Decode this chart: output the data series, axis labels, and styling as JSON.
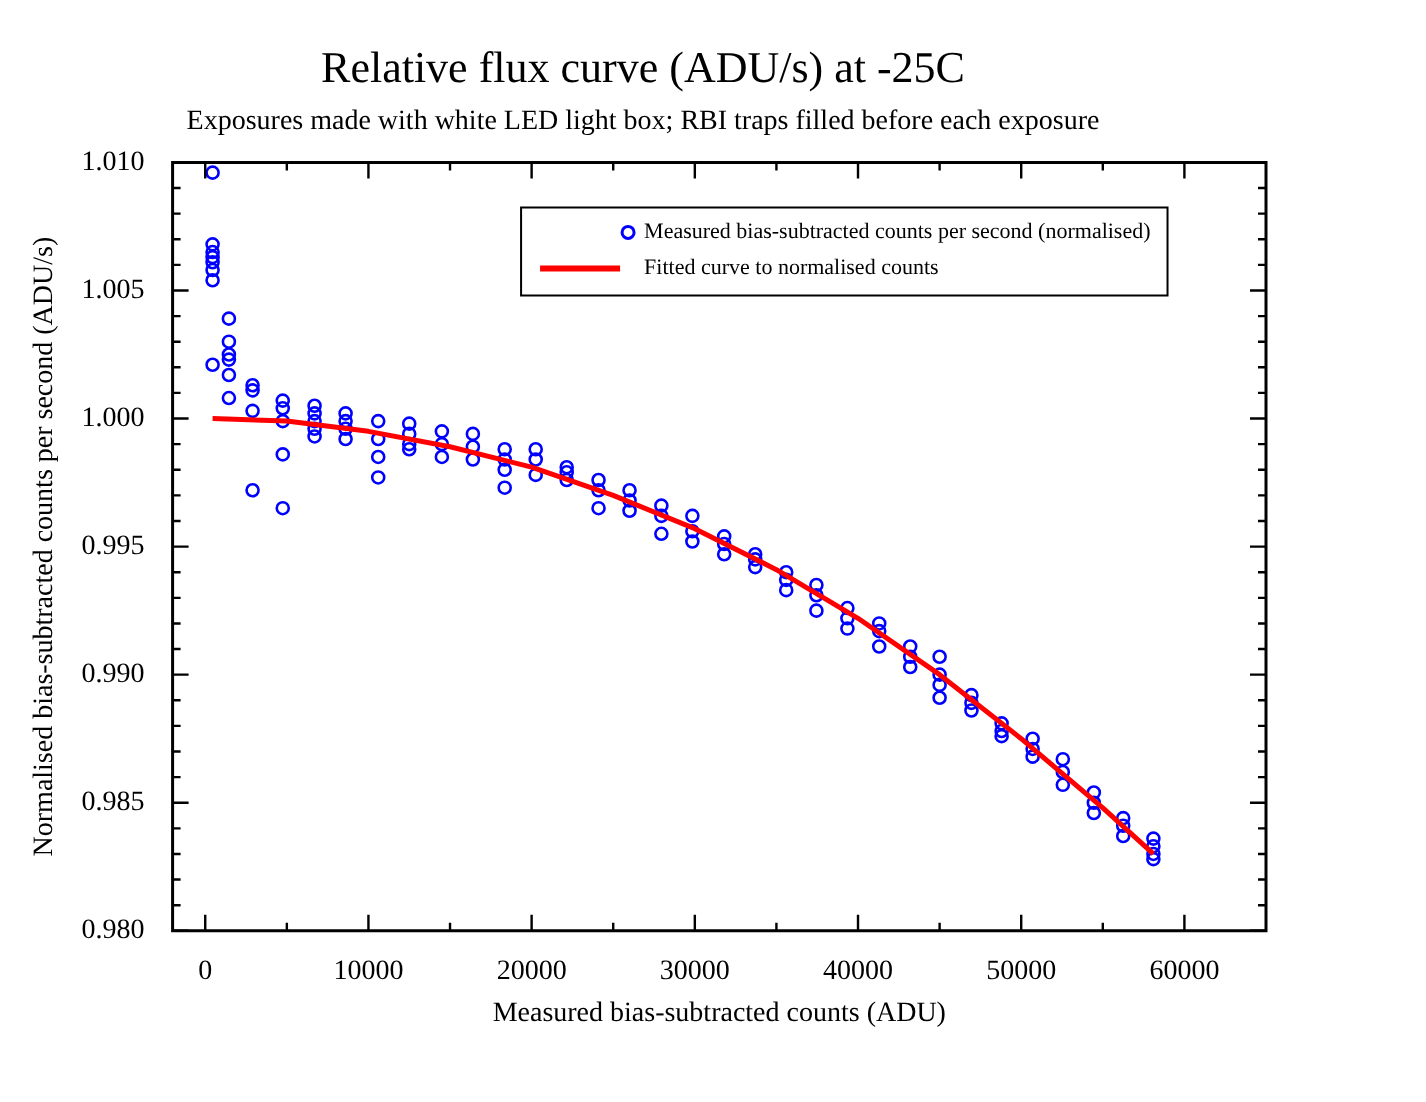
{
  "chart_data": {
    "type": "scatter",
    "title": "Relative flux curve (ADU/s) at -25C",
    "subtitle": "Exposures made with white LED light box; RBI traps filled before each exposure",
    "xlabel": "Measured bias-subtracted counts (ADU)",
    "ylabel": "Normalised bias-subtracted counts per second (ADU/s)",
    "xlim": [
      -2000,
      65000
    ],
    "xticks": [
      0,
      {
        "value": 5000,
        "label": null
      },
      10000,
      {
        "value": 15000,
        "label": null
      },
      20000,
      {
        "value": 25000,
        "label": null
      },
      30000,
      {
        "value": 35000,
        "label": null
      },
      40000,
      {
        "value": 45000,
        "label": null
      },
      50000,
      {
        "value": 55000,
        "label": null
      },
      60000
    ],
    "ylim": [
      0.98,
      1.01
    ],
    "yticks": [
      {
        "value": 0.98,
        "label": "0.980"
      },
      {
        "value": 0.981,
        "label": null
      },
      {
        "value": 0.982,
        "label": null
      },
      {
        "value": 0.983,
        "label": null
      },
      {
        "value": 0.984,
        "label": null
      },
      {
        "value": 0.985,
        "label": "0.985"
      },
      {
        "value": 0.986,
        "label": null
      },
      {
        "value": 0.987,
        "label": null
      },
      {
        "value": 0.988,
        "label": null
      },
      {
        "value": 0.989,
        "label": null
      },
      {
        "value": 0.99,
        "label": "0.990"
      },
      {
        "value": 0.991,
        "label": null
      },
      {
        "value": 0.992,
        "label": null
      },
      {
        "value": 0.993,
        "label": null
      },
      {
        "value": 0.994,
        "label": null
      },
      {
        "value": 0.995,
        "label": "0.995"
      },
      {
        "value": 0.996,
        "label": null
      },
      {
        "value": 0.997,
        "label": null
      },
      {
        "value": 0.998,
        "label": null
      },
      {
        "value": 0.999,
        "label": null
      },
      {
        "value": 1.0,
        "label": "1.000"
      },
      {
        "value": 1.001,
        "label": null
      },
      {
        "value": 1.002,
        "label": null
      },
      {
        "value": 1.003,
        "label": null
      },
      {
        "value": 1.004,
        "label": null
      },
      {
        "value": 1.005,
        "label": "1.005"
      },
      {
        "value": 1.006,
        "label": null
      },
      {
        "value": 1.007,
        "label": null
      },
      {
        "value": 1.008,
        "label": null
      },
      {
        "value": 1.009,
        "label": null
      },
      {
        "value": 1.01,
        "label": "1.010"
      }
    ],
    "grid": false,
    "legend": "top",
    "marker": "circle",
    "series": [
      {
        "name": "Measured bias-subtracted counts per second (normalised)",
        "type": "scatter",
        "color": "#0000ff",
        "x": [
          450,
          450,
          450,
          450,
          450,
          450,
          450,
          450,
          1450,
          1450,
          1450,
          1450,
          1450,
          1450,
          2900,
          2900,
          2900,
          2900,
          4750,
          4750,
          4750,
          4750,
          4750,
          6700,
          6700,
          6700,
          6700,
          6700,
          8600,
          8600,
          8600,
          8600,
          10600,
          10600,
          10600,
          10600,
          12500,
          12500,
          12500,
          12500,
          14500,
          14500,
          14500,
          16400,
          16400,
          16400,
          18350,
          18350,
          18350,
          18350,
          20250,
          20250,
          20250,
          22150,
          22150,
          22150,
          24100,
          24100,
          24100,
          26000,
          26000,
          26000,
          27950,
          27950,
          27950,
          29850,
          29850,
          29850,
          31800,
          31800,
          31800,
          33700,
          33700,
          33700,
          35600,
          35600,
          35600,
          37450,
          37450,
          37450,
          39350,
          39350,
          39350,
          41300,
          41300,
          41300,
          43200,
          43200,
          43200,
          45000,
          45000,
          45000,
          45000,
          46950,
          46950,
          46950,
          48800,
          48800,
          48800,
          50700,
          50700,
          50700,
          52550,
          52550,
          52550,
          54450,
          54450,
          54450,
          56250,
          56250,
          56250,
          58100,
          58100,
          58100,
          58100
        ],
        "values": [
          1.0096,
          1.0068,
          1.0065,
          1.0063,
          1.0061,
          1.0058,
          1.0054,
          1.0021,
          1.0039,
          1.003,
          1.0025,
          1.0023,
          1.0017,
          1.0008,
          1.0013,
          1.0011,
          1.0003,
          0.9972,
          1.0007,
          1.0004,
          0.9999,
          0.9986,
          0.9965,
          1.0005,
          1.0002,
          0.9999,
          0.9996,
          0.9993,
          1.0002,
          0.9999,
          0.9996,
          0.9992,
          0.9999,
          0.9992,
          0.9985,
          0.9977,
          0.9998,
          0.9994,
          0.999,
          0.9988,
          0.9995,
          0.999,
          0.9985,
          0.9994,
          0.9989,
          0.9984,
          0.9988,
          0.9984,
          0.998,
          0.9973,
          0.9988,
          0.9984,
          0.9978,
          0.9981,
          0.9979,
          0.9976,
          0.9976,
          0.9972,
          0.9965,
          0.9972,
          0.9968,
          0.9964,
          0.9966,
          0.9962,
          0.9955,
          0.9962,
          0.9956,
          0.9952,
          0.9954,
          0.9951,
          0.9947,
          0.9947,
          0.9945,
          0.9942,
          0.994,
          0.9937,
          0.9933,
          0.9935,
          0.9931,
          0.9925,
          0.9926,
          0.9922,
          0.9918,
          0.992,
          0.9917,
          0.9911,
          0.9911,
          0.9907,
          0.9903,
          0.9907,
          0.99,
          0.9896,
          0.9891,
          0.9892,
          0.9889,
          0.9886,
          0.9881,
          0.9878,
          0.9876,
          0.9875,
          0.9871,
          0.9868,
          0.9867,
          0.9862,
          0.9857,
          0.9854,
          0.985,
          0.9846,
          0.9844,
          0.9841,
          0.9837,
          0.9836,
          0.9833,
          0.983,
          0.9828
        ]
      },
      {
        "name": "Fitted curve to normalised counts",
        "type": "line",
        "color": "#ff0000",
        "marker": "none",
        "x": [
          450,
          5000,
          10000,
          15000,
          20000,
          25000,
          30000,
          35000,
          40000,
          45000,
          50000,
          55000,
          58100
        ],
        "values": [
          1.0,
          0.9999,
          0.9995,
          0.9989,
          0.9981,
          0.997,
          0.9957,
          0.9941,
          0.9922,
          0.99,
          0.9875,
          0.9848,
          0.983
        ]
      }
    ]
  }
}
